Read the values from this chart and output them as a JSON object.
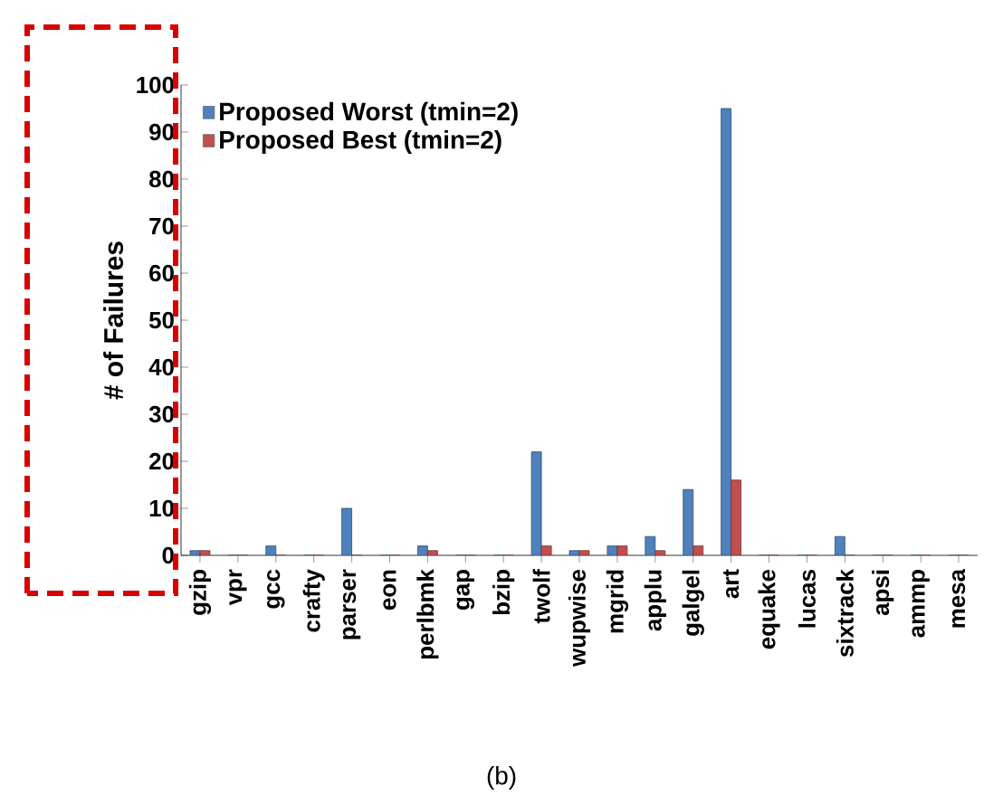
{
  "chart_data": {
    "type": "bar",
    "ylabel": "# of Failures",
    "categories": [
      "gzip",
      "vpr",
      "gcc",
      "crafty",
      "parser",
      "eon",
      "perlbmk",
      "gap",
      "bzip",
      "twolf",
      "wupwise",
      "mgrid",
      "applu",
      "galgel",
      "art",
      "equake",
      "lucas",
      "sixtrack",
      "apsi",
      "ammp",
      "mesa"
    ],
    "series": [
      {
        "name": "Proposed Worst (tmin=2)",
        "color": "#4f81bd",
        "values": [
          1,
          0,
          2,
          0,
          10,
          0,
          2,
          0,
          0,
          22,
          1,
          2,
          4,
          14,
          95,
          0,
          0,
          4,
          0,
          0,
          0
        ]
      },
      {
        "name": "Proposed Best (tmin=2)",
        "color": "#c0504d",
        "values": [
          1,
          0,
          0,
          0,
          0,
          0,
          1,
          0,
          0,
          2,
          1,
          2,
          1,
          2,
          16,
          0,
          0,
          0,
          0,
          0,
          0
        ]
      }
    ],
    "ylim": [
      0,
      100
    ],
    "yticks": [
      0,
      10,
      20,
      30,
      40,
      50,
      60,
      70,
      80,
      90,
      100
    ],
    "legend": "top left",
    "grid": false,
    "annotations": [
      "(b)"
    ]
  }
}
